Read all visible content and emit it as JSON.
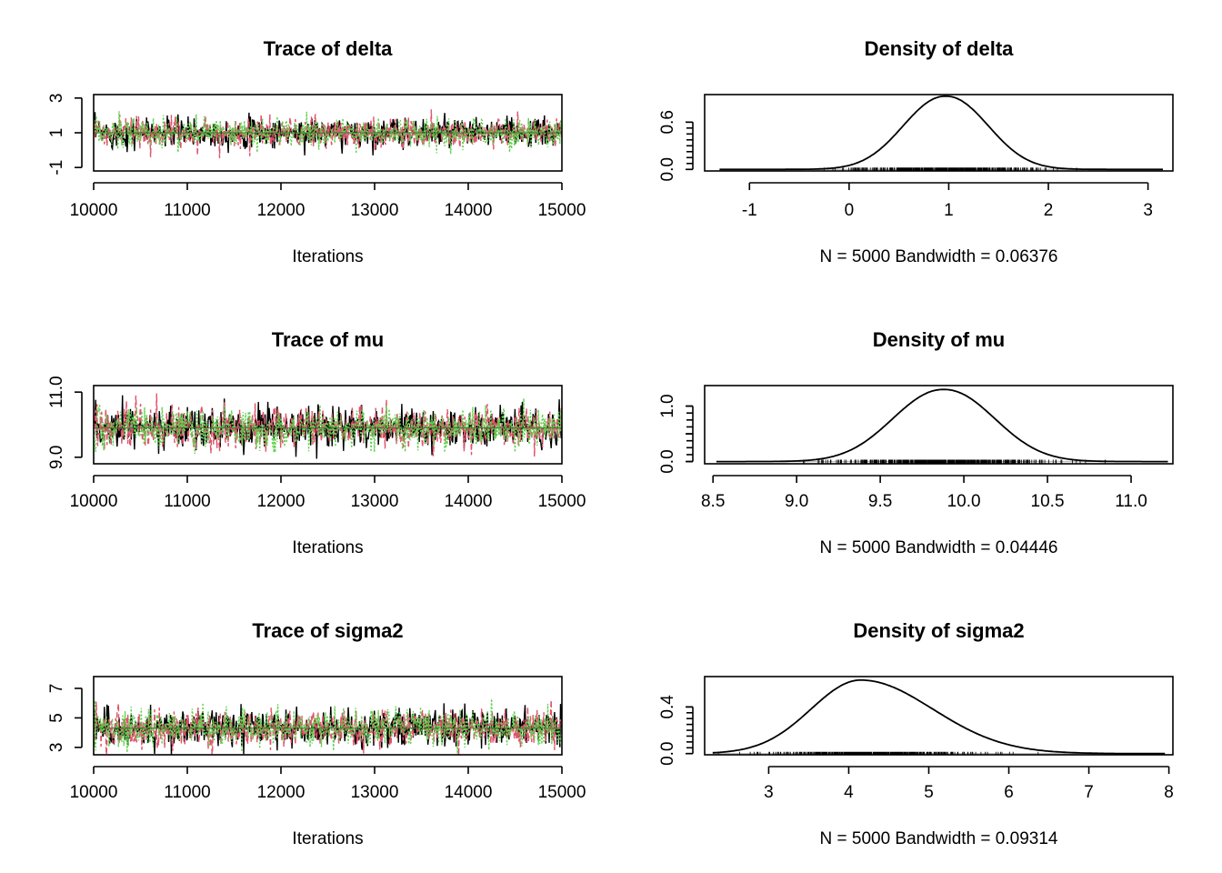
{
  "colors": {
    "chain1": "#000000",
    "chain2": "#DF536B",
    "chain3": "#61D04F",
    "rug": "#000000",
    "baseline": "#bebebe"
  },
  "chart_data": [
    {
      "type": "line",
      "title": "Trace of delta",
      "xlabel": "Iterations",
      "xticks": [
        10000,
        11000,
        12000,
        13000,
        14000,
        15000
      ],
      "yticks": [
        -1,
        1,
        3
      ],
      "xlim": [
        10000,
        15000
      ],
      "ylim": [
        -1.2,
        3.2
      ],
      "series": [
        {
          "color": "#000000",
          "mean": 1.0,
          "sd": 0.42
        },
        {
          "color": "#DF536B",
          "mean": 1.0,
          "sd": 0.42
        },
        {
          "color": "#61D04F",
          "mean": 1.0,
          "sd": 0.42
        }
      ]
    },
    {
      "type": "area",
      "title": "Density of delta",
      "xlabel": "N = 5000   Bandwidth = 0.06376",
      "xticks": [
        -1,
        0,
        1,
        2,
        3
      ],
      "yticks": [
        0.0,
        0.6
      ],
      "ytick_labels": [
        "0.0",
        "0.6"
      ],
      "xlim": [
        -1.45,
        3.25
      ],
      "ylim": [
        -0.02,
        0.95
      ],
      "density": {
        "mean": 0.97,
        "sd": 0.42,
        "peak": 0.93,
        "range": [
          -1.3,
          3.15
        ]
      }
    },
    {
      "type": "line",
      "title": "Trace of mu",
      "xlabel": "Iterations",
      "xticks": [
        10000,
        11000,
        12000,
        13000,
        14000,
        15000
      ],
      "yticks": [
        9.0,
        11.0
      ],
      "ytick_labels": [
        "9.0",
        "11.0"
      ],
      "xlim": [
        10000,
        15000
      ],
      "ylim": [
        8.8,
        11.2
      ],
      "series": [
        {
          "color": "#000000",
          "mean": 9.9,
          "sd": 0.3
        },
        {
          "color": "#DF536B",
          "mean": 9.9,
          "sd": 0.3
        },
        {
          "color": "#61D04F",
          "mean": 9.9,
          "sd": 0.3
        }
      ]
    },
    {
      "type": "area",
      "title": "Density of mu",
      "xlabel": "N = 5000   Bandwidth = 0.04446",
      "xticks": [
        8.5,
        9.0,
        9.5,
        10.0,
        10.5,
        11.0
      ],
      "xtick_labels": [
        "8.5",
        "9.0",
        "9.5",
        "10.0",
        "10.5",
        "11.0"
      ],
      "yticks": [
        0.0,
        0.5,
        1.0
      ],
      "ytick_labels": [
        "0.0",
        "",
        "1.0"
      ],
      "xlim": [
        8.45,
        11.25
      ],
      "ylim": [
        -0.04,
        1.37
      ],
      "density": {
        "mean": 9.88,
        "sd": 0.3,
        "peak": 1.3,
        "range": [
          8.52,
          11.22
        ]
      }
    },
    {
      "type": "line",
      "title": "Trace of sigma2",
      "xlabel": "Iterations",
      "xticks": [
        10000,
        11000,
        12000,
        13000,
        14000,
        15000
      ],
      "yticks": [
        3,
        5,
        7
      ],
      "xlim": [
        10000,
        15000
      ],
      "ylim": [
        2.5,
        7.8
      ],
      "series": [
        {
          "color": "#000000",
          "mean": 4.3,
          "sd": 0.62
        },
        {
          "color": "#DF536B",
          "mean": 4.3,
          "sd": 0.62
        },
        {
          "color": "#61D04F",
          "mean": 4.3,
          "sd": 0.62
        }
      ]
    },
    {
      "type": "area",
      "title": "Density of sigma2",
      "xlabel": "N = 5000   Bandwidth = 0.09314",
      "xticks": [
        3,
        4,
        5,
        6,
        7,
        8
      ],
      "yticks": [
        0.0,
        0.4
      ],
      "ytick_labels": [
        "0.0",
        "0.4"
      ],
      "xlim": [
        2.2,
        8.05
      ],
      "ylim": [
        -0.01,
        0.66
      ],
      "density": {
        "mean": 4.15,
        "sd": 0.62,
        "peak": 0.63,
        "range": [
          2.3,
          7.95
        ],
        "skew": 1.45
      }
    }
  ]
}
